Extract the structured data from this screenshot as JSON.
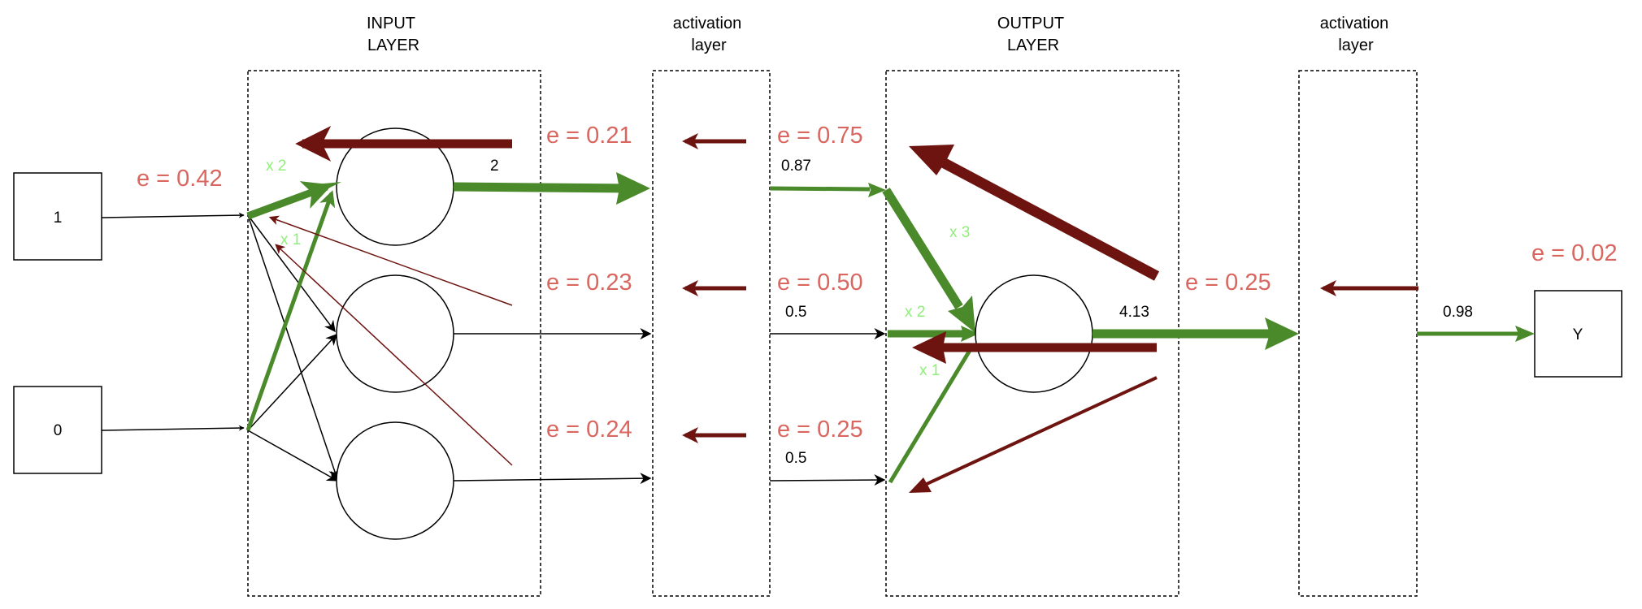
{
  "colors": {
    "forward": "#4a8a2a",
    "backward": "#6e1410",
    "error_text": "#d9665f",
    "gradient_text": "#90ee7a",
    "line": "#000000",
    "background": "#ffffff"
  },
  "headers": {
    "input_layer": [
      "INPUT",
      "LAYER"
    ],
    "activation_layer_1": [
      "activation",
      "layer"
    ],
    "output_layer": [
      "OUTPUT",
      "LAYER"
    ],
    "activation_layer_2": [
      "activation",
      "layer"
    ]
  },
  "inputs": {
    "top": "1",
    "bottom": "0"
  },
  "output_node": "Y",
  "errors": {
    "input": "e = 0.42",
    "hidden_1": "e = 0.21",
    "hidden_2": "e = 0.23",
    "hidden_3": "e = 0.24",
    "activation_1": "e = 0.75",
    "activation_2": "e = 0.50",
    "activation_3": "e = 0.25",
    "output": "e = 0.25",
    "final": "e = 0.02"
  },
  "values": {
    "hidden_1_out": "2",
    "act_1": "0.87",
    "act_2": "0.5",
    "act_3": "0.5",
    "output_out": "4.13",
    "final_act": "0.98"
  },
  "gradients": {
    "input_x2": "x 2",
    "input_x1": "x 1",
    "output_x3": "x 3",
    "output_x2": "x 2",
    "output_x1": "x 1"
  }
}
